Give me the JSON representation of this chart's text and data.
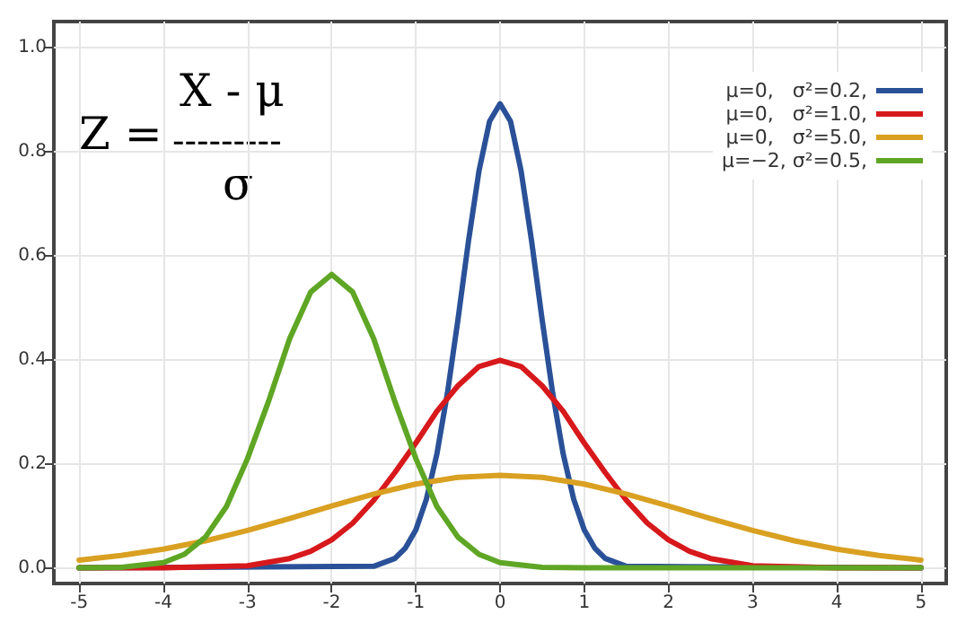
{
  "chart_data": {
    "type": "line",
    "xlim": [
      -5.3,
      5.3
    ],
    "ylim": [
      -0.03,
      1.05
    ],
    "xticks": [
      -5,
      -4,
      -3,
      -2,
      -1,
      0,
      1,
      2,
      3,
      4,
      5
    ],
    "yticks": [
      {
        "value": 0,
        "label": "0.0"
      },
      {
        "value": 0.2,
        "label": "0.2"
      },
      {
        "value": 0.4,
        "label": "0.4"
      },
      {
        "value": 0.6,
        "label": "0.6"
      },
      {
        "value": 0.8,
        "label": "0.8"
      },
      {
        "value": 1,
        "label": "1.0"
      }
    ],
    "grid": true,
    "legend": "top right",
    "marker": "none",
    "line_style": "solid",
    "annotations": [
      "Z =",
      "X - μ",
      "---------",
      "σ"
    ],
    "series": [
      {
        "name": "μ=0,   σ²=0.2,",
        "color": "#2a5198",
        "x": [
          -5,
          -1.5,
          -1.25,
          -1.125,
          -1,
          -0.875,
          -0.75,
          -0.625,
          -0.5,
          -0.375,
          -0.25,
          -0.125,
          0,
          0.125,
          0.25,
          0.375,
          0.5,
          0.625,
          0.75,
          0.875,
          1,
          1.125,
          1.25,
          1.5,
          5
        ],
        "values": [
          0,
          0.003,
          0.018,
          0.038,
          0.073,
          0.132,
          0.219,
          0.336,
          0.477,
          0.628,
          0.763,
          0.858,
          0.892,
          0.858,
          0.763,
          0.628,
          0.477,
          0.336,
          0.219,
          0.132,
          0.073,
          0.038,
          0.018,
          0.003,
          0
        ]
      },
      {
        "name": "μ=0,   σ²=1.0,",
        "color": "#d7191c",
        "x": [
          -5,
          -4,
          -3,
          -2.5,
          -2.25,
          -2,
          -1.75,
          -1.5,
          -1.25,
          -1,
          -0.75,
          -0.5,
          -0.25,
          0,
          0.25,
          0.5,
          0.75,
          1,
          1.25,
          1.5,
          1.75,
          2,
          2.25,
          2.5,
          3,
          4,
          5
        ],
        "values": [
          0,
          0,
          0.004,
          0.018,
          0.032,
          0.054,
          0.086,
          0.13,
          0.183,
          0.24,
          0.301,
          0.35,
          0.387,
          0.399,
          0.387,
          0.35,
          0.301,
          0.24,
          0.183,
          0.13,
          0.086,
          0.054,
          0.032,
          0.018,
          0.004,
          0,
          0
        ]
      },
      {
        "name": "μ=0,   σ²=5.0,",
        "color": "#d9a021",
        "x": [
          -5,
          -4.5,
          -4,
          -3.5,
          -3,
          -2.5,
          -2,
          -1.5,
          -1,
          -0.5,
          0,
          0.5,
          1,
          1.5,
          2,
          2.5,
          3,
          3.5,
          4,
          4.5,
          5
        ],
        "values": [
          0.015,
          0.024,
          0.036,
          0.052,
          0.072,
          0.095,
          0.119,
          0.142,
          0.161,
          0.174,
          0.178,
          0.174,
          0.161,
          0.142,
          0.119,
          0.095,
          0.072,
          0.052,
          0.036,
          0.024,
          0.015
        ]
      },
      {
        "name": "μ=−2, σ²=0.5,",
        "color": "#5ea624",
        "x": [
          -5,
          -4.5,
          -4,
          -3.75,
          -3.5,
          -3.25,
          -3,
          -2.75,
          -2.5,
          -2.25,
          -2,
          -1.75,
          -1.5,
          -1.25,
          -1,
          -0.75,
          -0.5,
          -0.25,
          0,
          0.5,
          1,
          5
        ],
        "values": [
          0,
          0.001,
          0.01,
          0.026,
          0.059,
          0.118,
          0.21,
          0.32,
          0.44,
          0.53,
          0.564,
          0.53,
          0.44,
          0.32,
          0.21,
          0.118,
          0.059,
          0.026,
          0.01,
          0.001,
          0,
          0
        ]
      }
    ]
  }
}
